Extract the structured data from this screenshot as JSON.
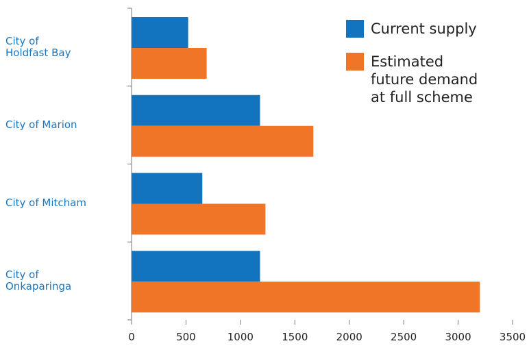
{
  "chart_data": {
    "type": "bar",
    "orientation": "horizontal",
    "categories": [
      "City of\nHoldfast Bay",
      "City of Marion",
      "City of Mitcham",
      "City of\nOnkaparinga"
    ],
    "series": [
      {
        "name": "Current supply",
        "color": "#1273be",
        "values": [
          520,
          1180,
          650,
          1180
        ]
      },
      {
        "name": "Estimated\nfuture demand\nat full scheme",
        "color": "#f07527",
        "values": [
          690,
          1670,
          1230,
          3200
        ]
      }
    ],
    "xlim": [
      0,
      3500
    ],
    "xticks": [
      "0",
      "500",
      "1000",
      "1500",
      "2000",
      "2500",
      "3000",
      "3500"
    ],
    "legend_position": "top-right",
    "grid": false
  }
}
